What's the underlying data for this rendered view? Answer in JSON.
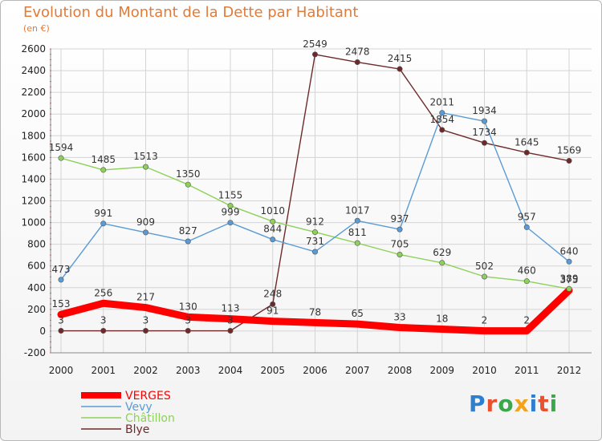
{
  "header": {
    "title": "Evolution du Montant de la Dette par Habitant",
    "subtitle": "(en €)"
  },
  "logo": {
    "text": "Proxiti",
    "letter_colors": [
      "#2f7fd1",
      "#e8502e",
      "#3aa84b",
      "#f2a21b",
      "#2f7fd1",
      "#e8502e",
      "#3aa84b"
    ]
  },
  "chart_data": {
    "type": "line",
    "x": [
      "2000",
      "2001",
      "2002",
      "2003",
      "2004",
      "2005",
      "2006",
      "2007",
      "2008",
      "2009",
      "2010",
      "2011",
      "2012"
    ],
    "ylim": [
      -200,
      2600
    ],
    "yticks": [
      "-200",
      "0",
      "200",
      "400",
      "600",
      "800",
      "1000",
      "1200",
      "1400",
      "1600",
      "1800",
      "2000",
      "2200",
      "2400",
      "2600"
    ],
    "grid": true,
    "legend_position": "bottom-left",
    "series": [
      {
        "name": "Blye",
        "color": "#6e2a2a",
        "values": [
          3,
          3,
          3,
          3,
          3,
          248,
          2549,
          2478,
          2415,
          1854,
          1734,
          1645,
          1569
        ]
      },
      {
        "name": "Châtillon",
        "color": "#8ed15a",
        "values": [
          1594,
          1485,
          1513,
          1350,
          1155,
          1010,
          912,
          811,
          705,
          629,
          502,
          460,
          389
        ]
      },
      {
        "name": "Vevy",
        "color": "#5a9bd5",
        "values": [
          473,
          991,
          909,
          827,
          999,
          844,
          731,
          1017,
          937,
          2011,
          1934,
          957,
          640
        ]
      },
      {
        "name": "VERGES",
        "color": "#ff0000",
        "values": [
          153,
          256,
          217,
          130,
          113,
          91,
          78,
          65,
          33,
          18,
          2,
          2,
          375
        ]
      }
    ]
  }
}
